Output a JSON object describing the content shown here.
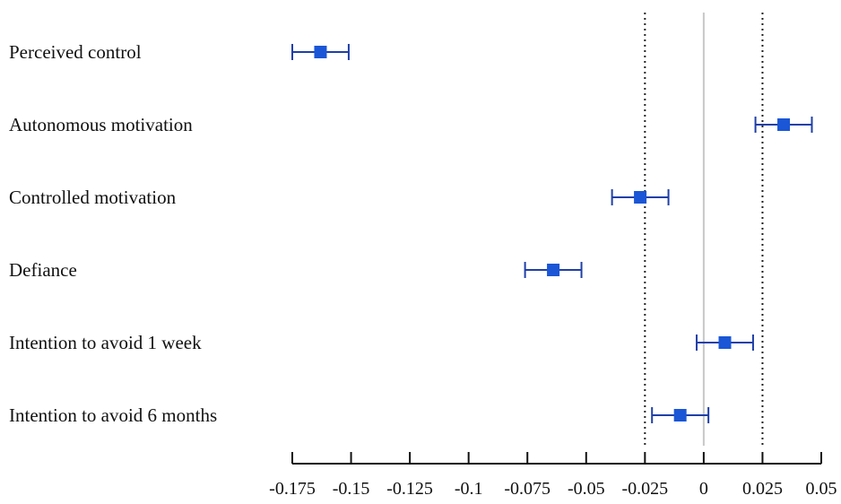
{
  "chart_data": {
    "type": "forest",
    "xlim": [
      -0.175,
      0.05
    ],
    "xticks": [
      -0.175,
      -0.15,
      -0.125,
      -0.1,
      -0.075,
      -0.05,
      -0.025,
      0,
      0.025,
      0.05
    ],
    "xtick_labels": [
      "-0.175",
      "-0.15",
      "-0.125",
      "-0.1",
      "-0.075",
      "-0.05",
      "-0.025",
      "0",
      "0.025",
      "0.05"
    ],
    "reference_line": 0,
    "threshold_lines": [
      -0.025,
      0.025
    ],
    "grid": false,
    "rows": [
      {
        "label": "Perceived control",
        "estimate": -0.163,
        "lower": -0.175,
        "upper": -0.151
      },
      {
        "label": "Autonomous motivation",
        "estimate": 0.034,
        "lower": 0.022,
        "upper": 0.046
      },
      {
        "label": "Controlled motivation",
        "estimate": -0.027,
        "lower": -0.039,
        "upper": -0.015
      },
      {
        "label": "Defiance",
        "estimate": -0.064,
        "lower": -0.076,
        "upper": -0.052
      },
      {
        "label": "Intention to avoid 1 week",
        "estimate": 0.009,
        "lower": -0.003,
        "upper": 0.021
      },
      {
        "label": "Intention to avoid 6 months",
        "estimate": -0.01,
        "lower": -0.022,
        "upper": 0.002
      }
    ],
    "colors": {
      "marker": "#1a56d6",
      "interval": "#1f3fa8",
      "axis": "#111111",
      "reference": "#c8c8c8",
      "threshold": "#222222"
    }
  }
}
